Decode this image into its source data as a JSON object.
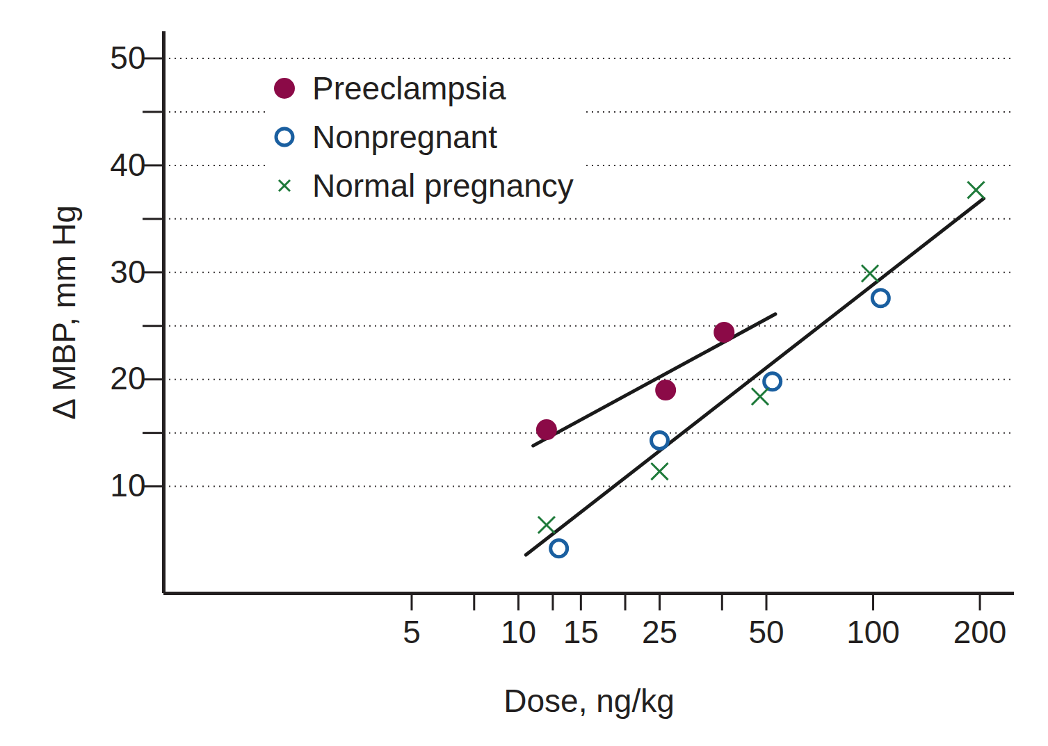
{
  "chart_data": {
    "type": "scatter",
    "xlabel": "Dose, ng/kg",
    "ylabel": "Δ MBP, mm Hg",
    "log": "x",
    "grid": true,
    "legend": "top-left",
    "xlim": [
      1,
      250
    ],
    "xticks": [
      5,
      10,
      15,
      25,
      50,
      100,
      200
    ],
    "xticks_minor": [
      7.5,
      12.5,
      20,
      37.5
    ],
    "ylim": [
      0,
      52.5
    ],
    "yticks": [
      10,
      20,
      30,
      40,
      50
    ],
    "yticks_minor": [
      15,
      25,
      35,
      45
    ],
    "series": [
      {
        "name": "Preeclampsia",
        "color": "#8b0a47",
        "marker": "filled_circle",
        "x": [
          12,
          26,
          38
        ],
        "values": [
          15.3,
          19,
          24.4
        ]
      },
      {
        "name": "Nonpregnant",
        "color": "#1a5fa0",
        "marker": "open_circle",
        "x": [
          13,
          25,
          52,
          105
        ],
        "values": [
          4.2,
          14.3,
          19.8,
          27.6
        ]
      },
      {
        "name": "Normal pregnancy",
        "color": "#1e7a3a",
        "marker": "x",
        "x": [
          12,
          25,
          48,
          98,
          195
        ],
        "values": [
          6.4,
          11.4,
          18.4,
          29.9,
          37.7
        ]
      }
    ],
    "fit_lines": [
      {
        "color": "#1a1a1a",
        "x": [
          11,
          53
        ],
        "values": [
          13.8,
          26.1
        ]
      },
      {
        "color": "#1a1a1a",
        "x": [
          10.5,
          205
        ],
        "values": [
          3.6,
          36.9
        ]
      }
    ]
  }
}
